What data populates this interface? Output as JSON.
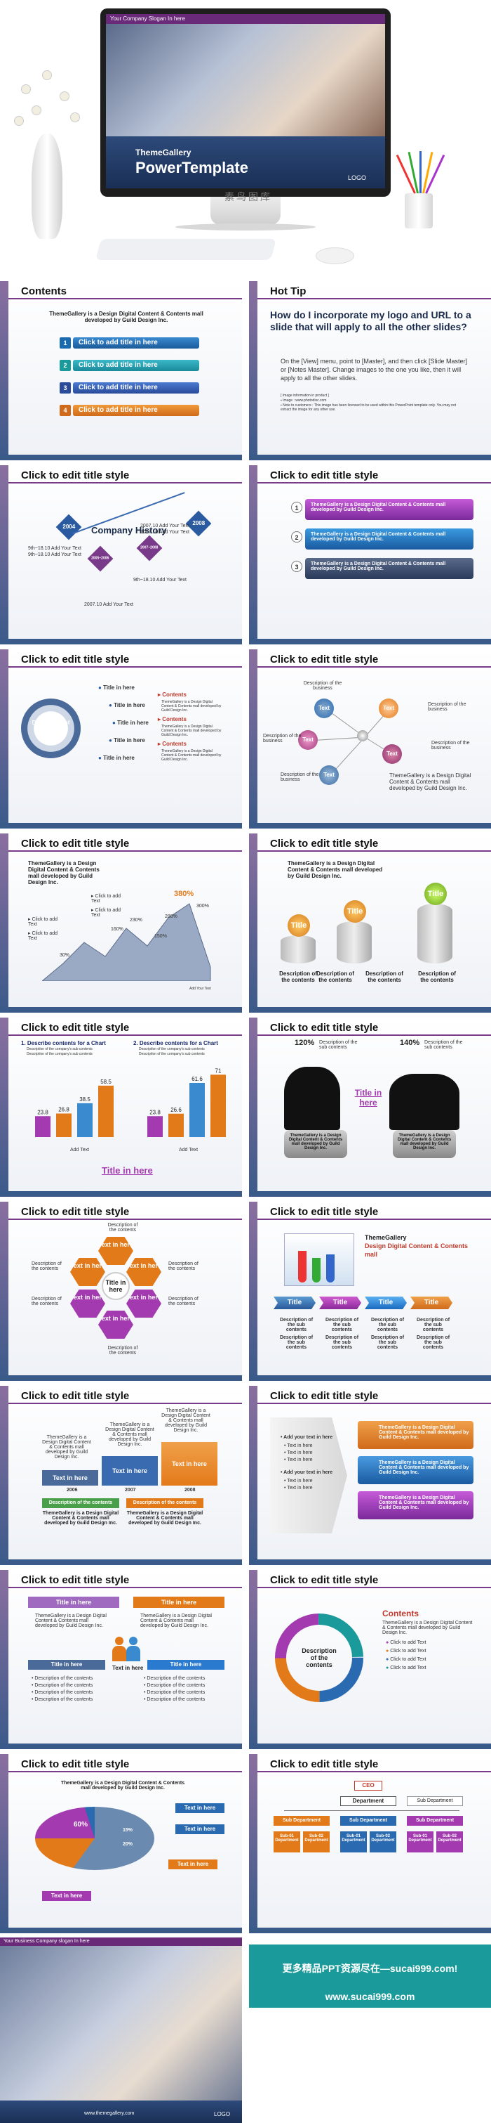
{
  "hero": {
    "screen_bar": "Your Company Slogan In here",
    "theme": "ThemeGallery",
    "title": "PowerTemplate",
    "logo": "LOGO",
    "watermark": "素鸟图库"
  },
  "common": {
    "edit_title": "Click to edit title style",
    "tg_desc": "ThemeGallery is a Design Digital Content & Contents mall developed by Guild Design Inc.",
    "title_here": "Title in here",
    "text_here": "Text in here",
    "add_text": "Add Your Text",
    "add_title": "Click to add title in here",
    "desc_contents": "Description of the contents",
    "desc_business": "Description of the business",
    "desc_sub": "Description of the sub contents",
    "click_add": "Click to add Text",
    "text": "Text",
    "title": "Title"
  },
  "slides": {
    "contents": {
      "title": "Contents",
      "items": [
        "Click to add title in here",
        "Click to add title in here",
        "Click to add title in here",
        "Click to add title in here"
      ],
      "nums": [
        "1",
        "2",
        "3",
        "4"
      ]
    },
    "hottip": {
      "title": "Hot Tip",
      "question": "How do I incorporate my logo and URL to a slide that will apply to all the other slides?",
      "answer": "On the [View] menu, point to [Master], and then click [Slide Master] or [Notes Master]. Change images to the one you like, then it will apply to all the other slides.",
      "fine1": "[ Image information in product ]",
      "fine2": "▪ Image : www.photodisc.com",
      "fine3": "▪ Note to customers : This image has been licensed to be used within this PowerPoint template only. You may not extract the image for any other use."
    },
    "history": {
      "heading": "Company History",
      "years": [
        "2004",
        "2005~2006",
        "2007~2008",
        "2008"
      ],
      "months": [
        "9th~18.10",
        "9th~18.10",
        "9th~18.10",
        "2007.10",
        "2007.10",
        "2007.10"
      ]
    },
    "bars3": {
      "nums": [
        "1",
        "2",
        "3"
      ]
    },
    "circle": {
      "center": "Description of the contents",
      "bullet": "Contents"
    },
    "star": {
      "center": "ThemeGallery is a Design Digital Content & Contents mall developed by Guild Design Inc."
    },
    "mountain": {
      "pcts": [
        "30%",
        "160%",
        "230%",
        "150%",
        "280%",
        "300%"
      ],
      "highlight": "380%",
      "footnote": "Add Your Text"
    },
    "cylinders": {
      "tags": [
        "Title",
        "Title",
        "Title"
      ]
    },
    "charts": {
      "left_title": "1. Describe contents for a Chart",
      "right_title": "2. Describe contents for a Chart",
      "sub1": "Description of the company's sub contents",
      "sub2": "Description of the company's sub contents",
      "left_vals": [
        "23.8",
        "26.8",
        "38.5",
        "58.5"
      ],
      "right_vals": [
        "23.8",
        "26.6",
        "61.6",
        "71"
      ],
      "cat": "Add Text",
      "bottom": "Title in here"
    },
    "silhouettes": {
      "pct1": "120%",
      "pct2": "140%"
    },
    "hexagon": {
      "center": "Title in here"
    },
    "beakers": {
      "desc_emph": "Design Digital Content & Contents mall",
      "tabs": [
        "Title",
        "Title",
        "Title",
        "Title"
      ]
    },
    "steps": {
      "years": [
        "2006",
        "2007",
        "2008"
      ]
    },
    "arrows": {
      "left_title": "Add your text in here"
    },
    "people": {
      "title": "Title in here"
    },
    "ring": {
      "heading": "Contents"
    },
    "pie": {
      "pcts": [
        "60%",
        "15%",
        "20%"
      ]
    },
    "org": {
      "ceo": "CEO",
      "dept": "Department",
      "subdept": "Sub Department",
      "sub": "Sub-01 Department",
      "sub2": "Sub-02 Department"
    }
  },
  "footer": {
    "top_bar": "Your Business Company slogan In here",
    "web": "www.themegallery.com",
    "logo": "LOGO",
    "ad1": "更多精品PPT资源尽在—sucai999.com!",
    "ad2": "www.sucai999.com"
  },
  "colors": {
    "purple": "#7a3a8a",
    "blue": "#2a6ab0",
    "orange": "#e37a1a",
    "teal": "#1a9a9a",
    "navy": "#2d4a7a"
  }
}
